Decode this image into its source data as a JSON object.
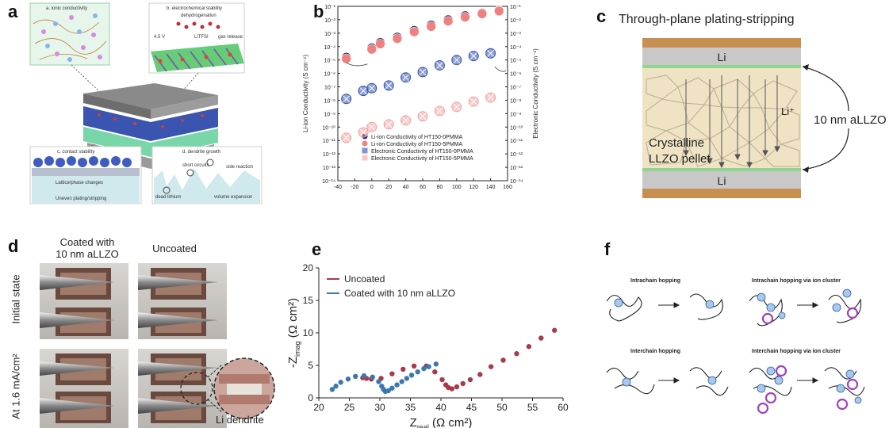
{
  "panel_labels": {
    "a": "a",
    "b": "b",
    "c": "c",
    "d": "d",
    "e": "e",
    "f": "f"
  },
  "panel_a": {
    "label_ionic": "a. ionic conductivity",
    "label_electrochem": "b. electrochemical stability",
    "label_dehydro": "dehydrogenation",
    "label_voltage": "4.5 V",
    "label_litfsi": "LiTFSI",
    "label_gas": "gas release",
    "label_contact": "c. contact stability",
    "label_dendrite": "d. dendrite growth",
    "label_interphase": "Lattice/phase changes",
    "label_uneven": "Uneven plating/stripping",
    "label_short": "short circuits",
    "label_side": "side reaction",
    "label_dead": "dead lithium",
    "label_volume": "volume expansion"
  },
  "panel_c": {
    "title": "Through-plane plating-stripping",
    "li_top": "Li",
    "li_bottom": "Li",
    "li_ion": "Li⁺",
    "coating": "10 nm aLLZO",
    "pellet_line1": "Crystalline",
    "pellet_line2": "LLZO pellet"
  },
  "panel_d": {
    "col1": "Coated with",
    "col1b": "10 nm aLLZO",
    "col2": "Uncoated",
    "row1": "Initial state",
    "row2": "At 1.6 mA/cm²",
    "dendrite": "Li dendrite"
  },
  "panel_f": {
    "intrachain": "Intrachain hopping",
    "intrachain_cluster": "Intrachain hopping via ion cluster",
    "interchain": "Interchain hopping",
    "interchain_cluster": "Interchain hopping via ion cluster"
  },
  "chart_data": [
    {
      "type": "scatter",
      "panel": "b",
      "xlabel": "",
      "ylabel": "Li-ion Conductivity (S cm⁻¹)",
      "y2label": "Electronic Conductivity (S cm⁻¹)",
      "xlim": [
        -40,
        160
      ],
      "ylog": true,
      "ylim_exp": [
        -14,
        -1
      ],
      "x_ticks": [
        "-40",
        "-20",
        "0",
        "20",
        "40",
        "60",
        "80",
        "100",
        "120",
        "140",
        "160"
      ],
      "y_ticks": [
        "10⁻¹",
        "10⁻²",
        "10⁻³",
        "10⁻⁴",
        "10⁻⁵",
        "10⁻⁶",
        "10⁻⁷",
        "10⁻⁸",
        "10⁻⁹",
        "10⁻¹⁰",
        "10⁻¹¹",
        "10⁻¹²",
        "10⁻¹³",
        "10⁻¹⁴"
      ],
      "legend_position": "bottom-right",
      "series": [
        {
          "name": "Li-ion Conductivity of HT150-0PMMA",
          "color": "#1b2a6b",
          "marker": "circle",
          "x": [
            -30,
            0,
            10,
            30,
            50,
            70,
            90,
            110,
            130,
            150
          ],
          "y_exp": [
            -4.8,
            -4.1,
            -3.7,
            -3.3,
            -2.8,
            -2.4,
            -2.0,
            -1.7,
            -1.5,
            -1.3
          ]
        },
        {
          "name": "Li-ion Conductivity of HT150-5PMMA",
          "color": "#f08080",
          "marker": "circle",
          "x": [
            -30,
            0,
            10,
            30,
            50,
            70,
            90,
            110,
            130,
            150
          ],
          "y_exp": [
            -4.9,
            -4.2,
            -3.8,
            -3.4,
            -2.9,
            -2.5,
            -2.1,
            -1.8,
            -1.55,
            -1.35
          ]
        },
        {
          "name": "Electronic Conductivity of HT150-0PMMA",
          "color": "#3050b0",
          "marker": "crossbox",
          "x": [
            -30,
            -10,
            0,
            20,
            40,
            60,
            80,
            100,
            120,
            140
          ],
          "y_exp": [
            -7.9,
            -7.3,
            -7.1,
            -6.9,
            -6.3,
            -5.9,
            -5.4,
            -5.0,
            -4.7,
            -4.5
          ]
        },
        {
          "name": "Electronic Conductivity of HT150-5PMMA",
          "color": "#f4a0a0",
          "marker": "crossbox",
          "x": [
            -30,
            -10,
            0,
            20,
            40,
            60,
            80,
            100,
            120,
            140
          ],
          "y_exp": [
            -10.8,
            -10.4,
            -10.0,
            -9.8,
            -9.5,
            -9.2,
            -8.8,
            -8.5,
            -8.1,
            -7.8
          ]
        }
      ]
    },
    {
      "type": "scatter",
      "panel": "e",
      "xlabel": "Z_real (Ω cm²)",
      "xlabel_main": "Z",
      "xlabel_sub": "real",
      "xlabel_unit": "(Ω cm²)",
      "ylabel_main": "-Z",
      "ylabel_sub": "imag",
      "ylabel_unit": "(Ω cm²)",
      "xlim": [
        20,
        60
      ],
      "ylim": [
        0,
        20
      ],
      "x_ticks": [
        "20",
        "25",
        "30",
        "35",
        "40",
        "45",
        "50",
        "55",
        "60"
      ],
      "y_ticks": [
        "0",
        "5",
        "10",
        "15",
        "20"
      ],
      "legend_position": "top-left",
      "series": [
        {
          "name": "Uncoated",
          "color": "#a83a4a",
          "x": [
            27.2,
            27.8,
            28.6,
            30.2,
            32.0,
            33.8,
            35.6,
            37.6,
            39.0,
            40.2,
            40.8,
            41.2,
            41.8,
            42.6,
            43.6,
            44.8,
            46.4,
            48.2,
            50.2,
            52.4,
            54.4,
            56.4,
            58.6
          ],
          "y": [
            3.1,
            3.0,
            2.9,
            3.0,
            3.7,
            4.4,
            4.9,
            4.9,
            4.0,
            2.8,
            2.0,
            1.6,
            1.4,
            1.7,
            2.2,
            2.8,
            3.6,
            4.8,
            5.8,
            6.8,
            7.9,
            9.2,
            10.4
          ]
        },
        {
          "name": "Coated with 10 nm aLLZO",
          "color": "#3a78b0",
          "x": [
            22.2,
            22.8,
            23.6,
            24.8,
            26.0,
            27.4,
            28.8,
            29.8,
            30.3,
            30.6,
            30.9,
            31.4,
            32.0,
            32.8,
            33.6,
            34.4,
            35.2,
            36.2,
            37.2,
            38.0,
            39.2
          ],
          "y": [
            1.3,
            1.8,
            2.4,
            2.9,
            3.3,
            3.4,
            3.2,
            2.5,
            1.8,
            1.3,
            1.0,
            1.1,
            1.5,
            2.0,
            2.5,
            3.0,
            3.5,
            4.0,
            4.5,
            4.8,
            5.2
          ]
        }
      ]
    }
  ]
}
